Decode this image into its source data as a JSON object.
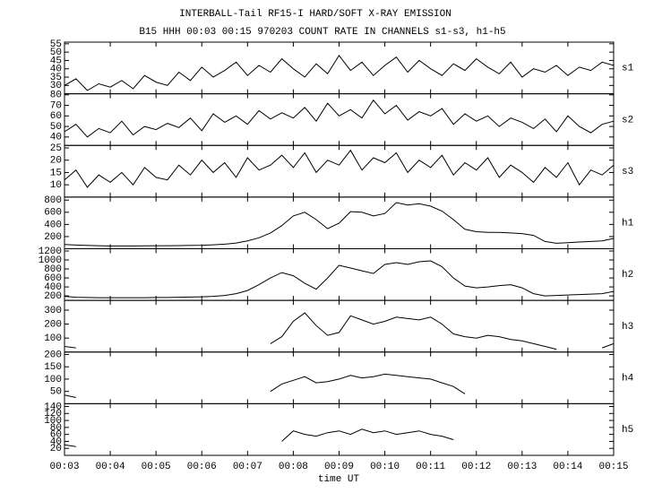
{
  "title": "INTERBALL-Tail RF15-I HARD/SOFT X-RAY EMISSION",
  "subtitle": "B15 HHH 00:03 00:15 970203  COUNT RATE IN CHANNELS s1-s3, h1-h5",
  "x_axis": {
    "label": "time UT",
    "xlim": [
      3,
      15
    ],
    "xticks": [
      {
        "value": 3,
        "label": "00:03"
      },
      {
        "value": 4,
        "label": "00:04"
      },
      {
        "value": 5,
        "label": "00:05"
      },
      {
        "value": 6,
        "label": "00:06"
      },
      {
        "value": 7,
        "label": "00:07"
      },
      {
        "value": 8,
        "label": "00:08"
      },
      {
        "value": 9,
        "label": "00:09"
      },
      {
        "value": 10,
        "label": "00:10"
      },
      {
        "value": 11,
        "label": "00:11"
      },
      {
        "value": 12,
        "label": "00:12"
      },
      {
        "value": 13,
        "label": "00:13"
      },
      {
        "value": 14,
        "label": "00:14"
      },
      {
        "value": 15,
        "label": "00:15"
      }
    ],
    "x": [
      3,
      3.25,
      3.5,
      3.75,
      4,
      4.25,
      4.5,
      4.75,
      5,
      5.25,
      5.5,
      5.75,
      6,
      6.25,
      6.5,
      6.75,
      7,
      7.25,
      7.5,
      7.75,
      8,
      8.25,
      8.5,
      8.75,
      9,
      9.25,
      9.5,
      9.75,
      10,
      10.25,
      10.5,
      10.75,
      11,
      11.25,
      11.5,
      11.75,
      12,
      12.25,
      12.5,
      12.75,
      13,
      13.25,
      13.5,
      13.75,
      14,
      14.25,
      14.5,
      14.75,
      15
    ]
  },
  "chart_data": [
    {
      "type": "line",
      "name": "s1",
      "color": "#000000",
      "ylim": [
        25,
        56
      ],
      "yticks": [
        30,
        35,
        40,
        45,
        50,
        55
      ],
      "values": [
        30,
        34,
        27,
        31,
        29,
        33,
        28,
        36,
        32,
        30,
        38,
        33,
        41,
        35,
        39,
        44,
        36,
        42,
        38,
        46,
        40,
        35,
        43,
        37,
        48,
        39,
        44,
        36,
        42,
        47,
        38,
        45,
        40,
        36,
        43,
        39,
        46,
        41,
        37,
        44,
        35,
        40,
        38,
        42,
        36,
        41,
        39,
        44,
        42
      ]
    },
    {
      "type": "line",
      "name": "s2",
      "color": "#000000",
      "ylim": [
        32,
        81
      ],
      "yticks": [
        40,
        50,
        60,
        70,
        80
      ],
      "values": [
        45,
        52,
        40,
        48,
        44,
        55,
        42,
        50,
        47,
        53,
        49,
        58,
        46,
        62,
        54,
        60,
        52,
        65,
        57,
        63,
        58,
        68,
        55,
        72,
        60,
        66,
        58,
        75,
        62,
        70,
        56,
        64,
        60,
        67,
        52,
        62,
        55,
        60,
        50,
        58,
        54,
        48,
        57,
        45,
        60,
        50,
        44,
        52,
        55
      ]
    },
    {
      "type": "line",
      "name": "s3",
      "color": "#000000",
      "ylim": [
        5,
        26
      ],
      "yticks": [
        10,
        15,
        20,
        25
      ],
      "values": [
        12,
        16,
        9,
        14,
        11,
        15,
        10,
        17,
        13,
        12,
        18,
        14,
        20,
        15,
        19,
        13,
        21,
        16,
        18,
        22,
        17,
        23,
        15,
        20,
        18,
        24,
        16,
        21,
        19,
        23,
        15,
        20,
        17,
        22,
        14,
        19,
        16,
        21,
        13,
        18,
        15,
        11,
        17,
        13,
        19,
        10,
        16,
        14,
        18
      ]
    },
    {
      "type": "line",
      "name": "h1",
      "color": "#000000",
      "ylim": [
        0,
        850
      ],
      "yticks": [
        200,
        400,
        600,
        800
      ],
      "values": [
        70,
        60,
        55,
        50,
        45,
        45,
        45,
        48,
        50,
        50,
        52,
        55,
        58,
        65,
        75,
        95,
        130,
        180,
        260,
        380,
        540,
        600,
        480,
        330,
        420,
        610,
        600,
        540,
        580,
        760,
        720,
        740,
        700,
        620,
        480,
        320,
        280,
        270,
        270,
        260,
        250,
        220,
        120,
        90,
        100,
        110,
        120,
        130,
        170
      ]
    },
    {
      "type": "line",
      "name": "h2",
      "color": "#000000",
      "ylim": [
        100,
        1250
      ],
      "yticks": [
        200,
        400,
        600,
        800,
        1000,
        1200
      ],
      "values": [
        190,
        170,
        165,
        160,
        160,
        160,
        160,
        160,
        165,
        165,
        170,
        175,
        180,
        190,
        210,
        250,
        320,
        450,
        600,
        720,
        650,
        480,
        350,
        600,
        880,
        820,
        760,
        700,
        900,
        940,
        900,
        960,
        980,
        850,
        600,
        420,
        380,
        400,
        430,
        450,
        380,
        250,
        200,
        210,
        220,
        230,
        240,
        250,
        300
      ]
    },
    {
      "type": "line",
      "name": "h3",
      "color": "#000000",
      "ylim": [
        0,
        370
      ],
      "yticks": [
        100,
        200,
        300
      ],
      "values": [
        40,
        30,
        null,
        null,
        null,
        null,
        null,
        null,
        null,
        null,
        null,
        null,
        null,
        null,
        null,
        null,
        null,
        null,
        60,
        110,
        220,
        280,
        190,
        120,
        140,
        260,
        230,
        200,
        220,
        250,
        240,
        230,
        250,
        200,
        130,
        110,
        100,
        120,
        110,
        90,
        80,
        60,
        40,
        20,
        null,
        null,
        null,
        30,
        60
      ]
    },
    {
      "type": "line",
      "name": "h4",
      "color": "#000000",
      "ylim": [
        0,
        210
      ],
      "yticks": [
        50,
        100,
        150,
        200
      ],
      "values": [
        35,
        25,
        null,
        null,
        null,
        null,
        null,
        null,
        null,
        null,
        null,
        null,
        null,
        null,
        null,
        null,
        null,
        null,
        50,
        80,
        95,
        110,
        85,
        90,
        100,
        115,
        105,
        110,
        120,
        115,
        110,
        105,
        100,
        85,
        70,
        40,
        null,
        null,
        null,
        null,
        null,
        null,
        null,
        null,
        null,
        null,
        null,
        null,
        null
      ]
    },
    {
      "type": "line",
      "name": "h5",
      "color": "#000000",
      "ylim": [
        0,
        148
      ],
      "yticks": [
        20,
        40,
        60,
        80,
        100,
        120,
        140
      ],
      "values": [
        30,
        25,
        null,
        null,
        null,
        null,
        null,
        null,
        null,
        null,
        null,
        null,
        null,
        null,
        null,
        null,
        null,
        null,
        null,
        40,
        70,
        60,
        55,
        65,
        70,
        60,
        75,
        65,
        70,
        60,
        65,
        70,
        60,
        55,
        45,
        null,
        null,
        null,
        null,
        null,
        null,
        null,
        null,
        null,
        null,
        null,
        null,
        null,
        null
      ]
    }
  ]
}
